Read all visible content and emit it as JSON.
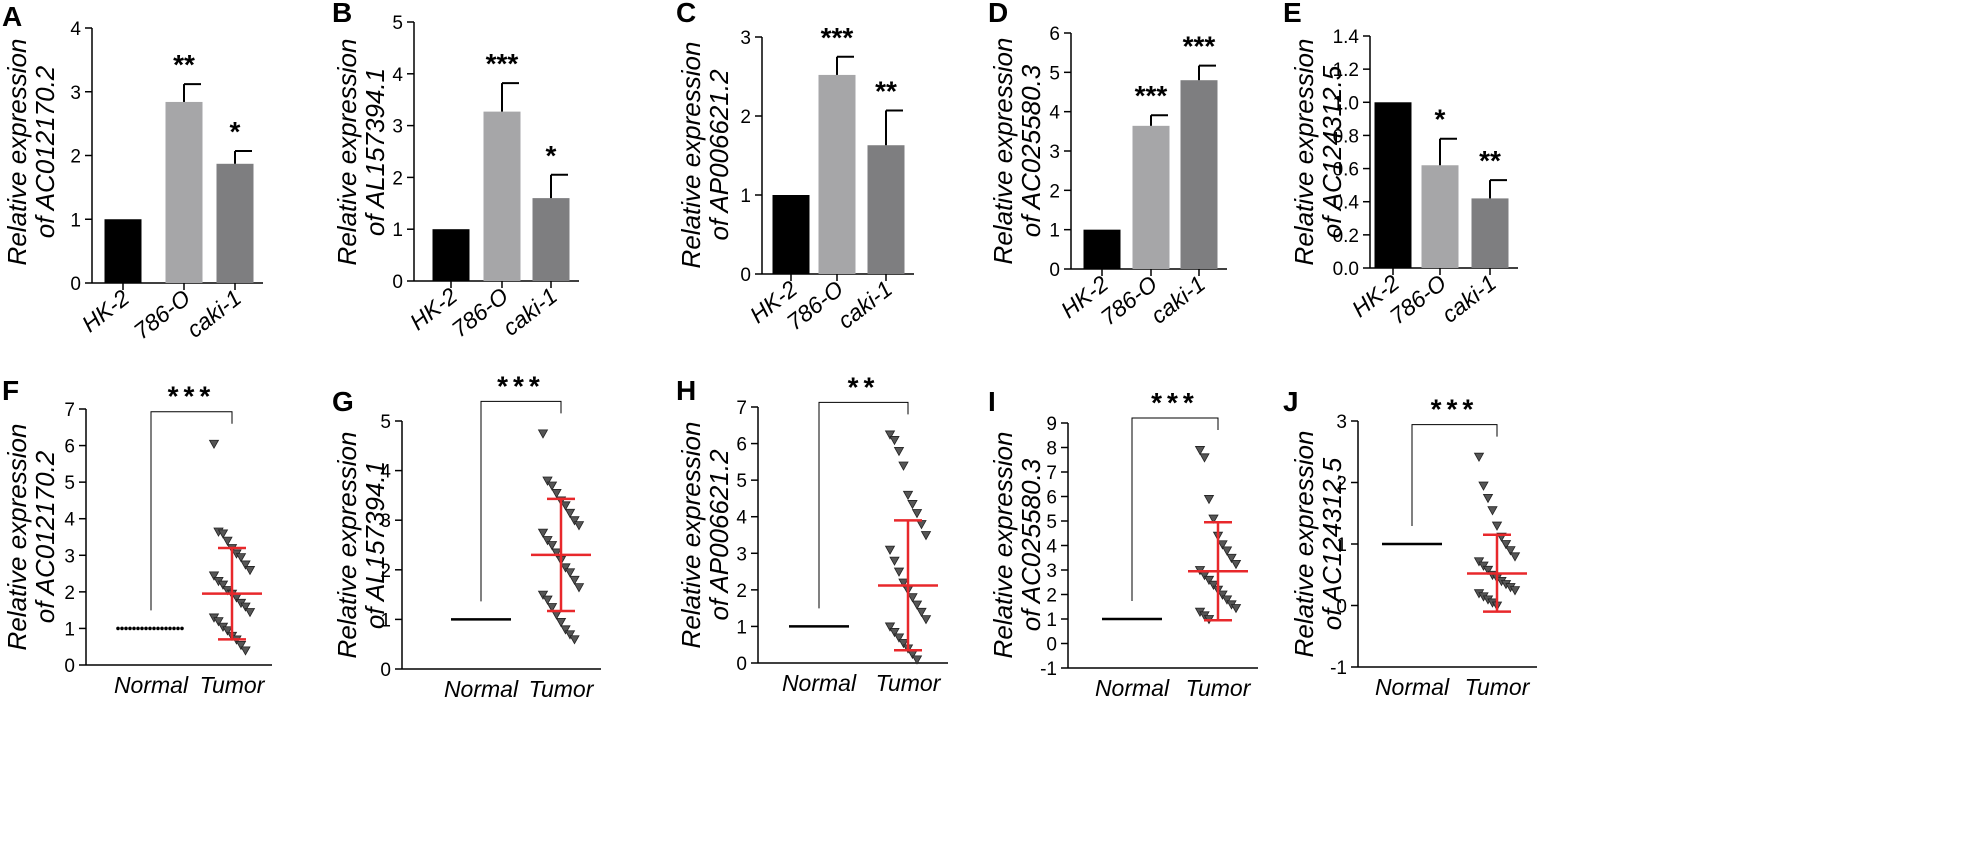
{
  "chart_data": [
    {
      "panel": "A",
      "type": "bar",
      "ylabel_line1": "Relative expression",
      "ylabel_line2": "of AC012170.2",
      "categories": [
        "HK-2",
        "786-O",
        "caki-1"
      ],
      "values": [
        1.0,
        2.84,
        1.87
      ],
      "errors": [
        0,
        0.28,
        0.2
      ],
      "significance": [
        "",
        "**",
        "*"
      ],
      "colors": [
        "#000000",
        "#a6a6a8",
        "#7e7e80"
      ],
      "ylim": [
        0,
        4
      ],
      "yticks": [
        "0",
        "1",
        "2",
        "3",
        "4"
      ]
    },
    {
      "panel": "B",
      "type": "bar",
      "ylabel_line1": "Relative expression",
      "ylabel_line2": "of AL157394.1",
      "categories": [
        "HK-2",
        "786-O",
        "caki-1"
      ],
      "values": [
        1.0,
        3.27,
        1.6
      ],
      "errors": [
        0,
        0.55,
        0.45
      ],
      "significance": [
        "",
        "***",
        "*"
      ],
      "colors": [
        "#000000",
        "#a6a6a8",
        "#7e7e80"
      ],
      "ylim": [
        0,
        5
      ],
      "yticks": [
        "0",
        "1",
        "2",
        "3",
        "4",
        "5"
      ]
    },
    {
      "panel": "C",
      "type": "bar",
      "ylabel_line1": "Relative expression",
      "ylabel_line2": "of AP006621.2",
      "categories": [
        "HK-2",
        "786-O",
        "caki-1"
      ],
      "values": [
        1.0,
        2.52,
        1.63
      ],
      "errors": [
        0,
        0.23,
        0.44
      ],
      "significance": [
        "",
        "***",
        "**"
      ],
      "colors": [
        "#000000",
        "#a6a6a8",
        "#7e7e80"
      ],
      "ylim": [
        0,
        3
      ],
      "yticks": [
        "0",
        "1",
        "2",
        "3"
      ]
    },
    {
      "panel": "D",
      "type": "bar",
      "ylabel_line1": "Relative expression",
      "ylabel_line2": "of AC025580.3",
      "categories": [
        "HK-2",
        "786-O",
        "caki-1"
      ],
      "values": [
        1.0,
        3.64,
        4.8
      ],
      "errors": [
        0,
        0.27,
        0.37
      ],
      "significance": [
        "",
        "***",
        "***"
      ],
      "colors": [
        "#000000",
        "#a6a6a8",
        "#7e7e80"
      ],
      "ylim": [
        0,
        6
      ],
      "yticks": [
        "0",
        "1",
        "2",
        "3",
        "4",
        "5",
        "6"
      ]
    },
    {
      "panel": "E",
      "type": "bar",
      "ylabel_line1": "Relative expression",
      "ylabel_line2": "of AC124312.5",
      "categories": [
        "HK-2",
        "786-O",
        "caki-1"
      ],
      "values": [
        1.0,
        0.62,
        0.42
      ],
      "errors": [
        0,
        0.16,
        0.11
      ],
      "significance": [
        "",
        "*",
        "**"
      ],
      "colors": [
        "#000000",
        "#a6a6a8",
        "#7e7e80"
      ],
      "ylim": [
        0,
        1.4
      ],
      "yticks": [
        "0.0",
        "0.2",
        "0.4",
        "0.6",
        "0.8",
        "1.0",
        "1.2",
        "1.4"
      ]
    },
    {
      "panel": "F",
      "type": "scatter",
      "ylabel_line1": "Relative expression",
      "ylabel_line2": "of AC012170.2",
      "categories": [
        "Normal",
        "Tumor"
      ],
      "normal_value": 1.0,
      "tumor_mean": 1.95,
      "tumor_sd_low": 0.7,
      "tumor_sd_high": 3.2,
      "significance": "***",
      "ylim": [
        0,
        7
      ],
      "yticks": [
        "0",
        "1",
        "2",
        "3",
        "4",
        "5",
        "6",
        "7"
      ],
      "tumor_points": [
        6.05,
        3.65,
        3.6,
        3.4,
        3.2,
        3.05,
        2.95,
        2.75,
        2.6,
        2.45,
        2.3,
        2.2,
        2.05,
        1.95,
        1.85,
        1.7,
        1.6,
        1.45,
        1.3,
        1.2,
        1.05,
        0.95,
        0.8,
        0.7,
        0.55,
        0.4
      ]
    },
    {
      "panel": "G",
      "type": "scatter",
      "ylabel_line1": "Relative expression",
      "ylabel_line2": "of AL157394.1",
      "categories": [
        "Normal",
        "Tumor"
      ],
      "normal_value": 1.0,
      "tumor_mean": 2.3,
      "tumor_sd_low": 1.17,
      "tumor_sd_high": 3.43,
      "significance": "***",
      "ylim": [
        0,
        5
      ],
      "yticks": [
        "0",
        "1",
        "2",
        "3",
        "4",
        "5"
      ],
      "tumor_points": [
        4.75,
        3.8,
        3.7,
        3.55,
        3.4,
        3.3,
        3.15,
        3.0,
        2.9,
        2.75,
        2.6,
        2.5,
        2.35,
        2.2,
        2.05,
        1.95,
        1.8,
        1.65,
        1.5,
        1.4,
        1.25,
        1.1,
        0.95,
        0.8,
        0.7,
        0.6
      ]
    },
    {
      "panel": "H",
      "type": "scatter",
      "ylabel_line1": "Relative expression",
      "ylabel_line2": "of AP006621.2",
      "categories": [
        "Normal",
        "Tumor"
      ],
      "normal_value": 1.0,
      "tumor_mean": 2.12,
      "tumor_sd_low": 0.35,
      "tumor_sd_high": 3.9,
      "significance": "**",
      "ylim": [
        0,
        7
      ],
      "yticks": [
        "0",
        "1",
        "2",
        "3",
        "4",
        "5",
        "6",
        "7"
      ],
      "tumor_points": [
        6.25,
        6.1,
        5.8,
        5.4,
        4.6,
        4.35,
        4.1,
        3.8,
        3.5,
        3.1,
        2.8,
        2.5,
        2.2,
        2.0,
        1.8,
        1.6,
        1.4,
        1.2,
        1.0,
        0.85,
        0.7,
        0.55,
        0.4,
        0.25,
        0.1
      ]
    },
    {
      "panel": "I",
      "type": "scatter",
      "ylabel_line1": "Relative expression",
      "ylabel_line2": "of AC025580.3",
      "categories": [
        "Normal",
        "Tumor"
      ],
      "normal_value": 1.0,
      "tumor_mean": 2.95,
      "tumor_sd_low": 0.95,
      "tumor_sd_high": 4.95,
      "significance": "***",
      "ylim": [
        -1,
        9
      ],
      "yticks": [
        "-1",
        "0",
        "1",
        "2",
        "3",
        "4",
        "5",
        "6",
        "7",
        "8",
        "9"
      ],
      "tumor_points": [
        7.9,
        7.6,
        5.9,
        5.1,
        4.4,
        4.05,
        3.8,
        3.5,
        3.25,
        3.0,
        2.8,
        2.6,
        2.4,
        2.2,
        2.0,
        1.8,
        1.6,
        1.45,
        1.3,
        1.15,
        1.0
      ]
    },
    {
      "panel": "J",
      "type": "scatter",
      "ylabel_line1": "Relative expression",
      "ylabel_line2": "of AC124312.5",
      "categories": [
        "Normal",
        "Tumor"
      ],
      "normal_value": 1.0,
      "tumor_mean": 0.52,
      "tumor_sd_low": -0.1,
      "tumor_sd_high": 1.15,
      "significance": "***",
      "ylim": [
        -1,
        3
      ],
      "yticks": [
        "-1",
        "0",
        "1",
        "2",
        "3"
      ],
      "tumor_points": [
        2.42,
        1.95,
        1.75,
        1.55,
        1.3,
        1.12,
        1.0,
        0.9,
        0.8,
        0.72,
        0.65,
        0.58,
        0.5,
        0.45,
        0.4,
        0.35,
        0.3,
        0.25,
        0.2,
        0.15,
        0.1,
        0.05,
        0.0
      ]
    }
  ]
}
